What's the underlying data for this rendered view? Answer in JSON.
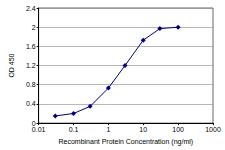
{
  "chart_data": {
    "type": "line",
    "x_label": "Recombinant Protein Concentration (ng/ml)",
    "y_label": "OD 450",
    "x": [
      0.03,
      0.1,
      0.3,
      1,
      3,
      10,
      30,
      100
    ],
    "values": [
      0.15,
      0.2,
      0.35,
      0.73,
      1.2,
      1.73,
      1.97,
      2.0
    ],
    "color": "#000080",
    "marker": "diamond",
    "line_style": "solid",
    "log": "x",
    "xlim": [
      0.01,
      1000
    ],
    "xticks": [
      0.01,
      0.1,
      1,
      10,
      100,
      1000
    ],
    "ylim": [
      0,
      2.4
    ],
    "yticks": [
      0,
      0.4,
      0.8,
      1.2,
      1.6,
      2,
      2.4
    ],
    "grid": true
  }
}
